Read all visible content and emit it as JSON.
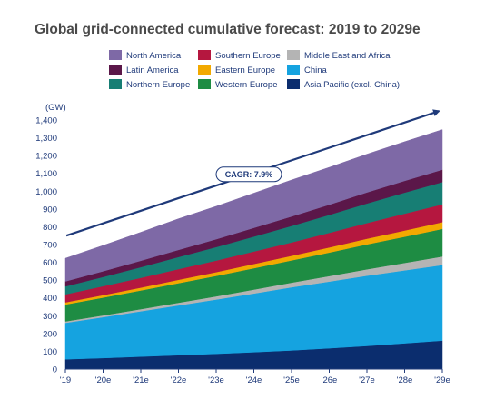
{
  "chart_data": {
    "type": "area",
    "stacked": true,
    "title": "Global grid-connected cumulative forecast: 2019 to 2029e",
    "y_unit": "(GW)",
    "ylim": [
      0,
      1400
    ],
    "y_ticks": [
      0,
      100,
      200,
      300,
      400,
      500,
      600,
      700,
      800,
      900,
      1000,
      1100,
      1200,
      1300,
      1400
    ],
    "x": [
      "'19",
      "'20e",
      "'21e",
      "'22e",
      "'23e",
      "'24e",
      "'25e",
      "'26e",
      "'27e",
      "'28e",
      "'29e"
    ],
    "series": [
      {
        "name": "Asia Pacific (excl. China)",
        "color": "#0b2d6e",
        "values": [
          55,
          62,
          70,
          78,
          86,
          95,
          105,
          117,
          130,
          145,
          160
        ]
      },
      {
        "name": "China",
        "color": "#15a3e0",
        "values": [
          205,
          230,
          255,
          280,
          305,
          330,
          355,
          375,
          395,
          410,
          425
        ]
      },
      {
        "name": "Middle East and Africa",
        "color": "#b4b4b4",
        "values": [
          8,
          10,
          12,
          15,
          18,
          22,
          26,
          31,
          36,
          42,
          48
        ]
      },
      {
        "name": "Western Europe",
        "color": "#1e8c43",
        "values": [
          95,
          100,
          105,
          110,
          115,
          120,
          125,
          132,
          140,
          147,
          155
        ]
      },
      {
        "name": "Eastern Europe",
        "color": "#f2a900",
        "values": [
          12,
          14,
          16,
          19,
          21,
          24,
          26,
          29,
          32,
          35,
          38
        ]
      },
      {
        "name": "Southern Europe",
        "color": "#b5173f",
        "values": [
          45,
          50,
          55,
          60,
          65,
          70,
          75,
          82,
          88,
          95,
          100
        ]
      },
      {
        "name": "Northern Europe",
        "color": "#177e74",
        "values": [
          45,
          52,
          60,
          68,
          76,
          84,
          93,
          101,
          110,
          118,
          125
        ]
      },
      {
        "name": "Latin America",
        "color": "#5b1749",
        "values": [
          28,
          32,
          36,
          40,
          44,
          49,
          53,
          57,
          62,
          66,
          70
        ]
      },
      {
        "name": "North America",
        "color": "#7e69a6",
        "values": [
          130,
          145,
          160,
          175,
          185,
          195,
          205,
          210,
          215,
          220,
          225
        ]
      }
    ],
    "legend_order": [
      "North America",
      "Southern Europe",
      "Middle East and Africa",
      "Latin America",
      "Eastern Europe",
      "China",
      "Northern Europe",
      "Western Europe",
      "Asia Pacific (excl. China)"
    ],
    "legend_placement": "top",
    "annotation": {
      "text": "CAGR: 7.9%",
      "start_value": 750,
      "end_value": 1460
    }
  }
}
